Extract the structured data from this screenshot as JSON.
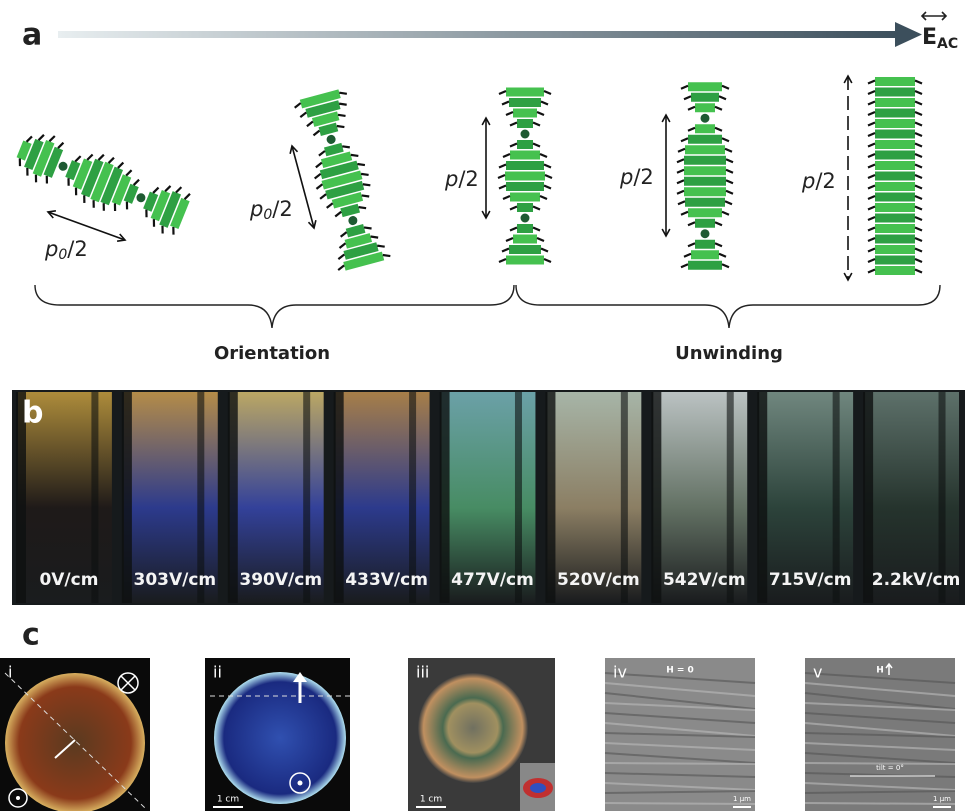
{
  "panel_a": {
    "label": "a",
    "field": {
      "symbol": "E",
      "subscript": "AC"
    },
    "pitches": [
      {
        "symbol": "p",
        "subscript": "0",
        "suffix": "/2"
      },
      {
        "symbol": "p",
        "subscript": "0",
        "suffix": "/2"
      },
      {
        "symbol": "p",
        "suffix": "/2"
      },
      {
        "symbol": "p",
        "suffix": "/2"
      },
      {
        "symbol": "p",
        "suffix": "/2"
      }
    ],
    "groups": [
      "Orientation",
      "Unwinding"
    ]
  },
  "panel_b": {
    "label": "b",
    "fields": [
      "0V/cm",
      "303V/cm",
      "390V/cm",
      "433V/cm",
      "477V/cm",
      "520V/cm",
      "542V/cm",
      "715V/cm",
      "2.2kV/cm"
    ]
  },
  "panel_c": {
    "label": "c",
    "images": [
      {
        "numeral": "i"
      },
      {
        "numeral": "ii",
        "scale_bar": "1 cm"
      },
      {
        "numeral": "iii",
        "scale_bar": "1 cm"
      },
      {
        "numeral": "iv",
        "note": "H = 0",
        "scale_bar": "1 μm"
      },
      {
        "numeral": "v",
        "note": "H",
        "caption": "tilt = 0°",
        "scale_bar": "1 μm"
      }
    ]
  }
}
